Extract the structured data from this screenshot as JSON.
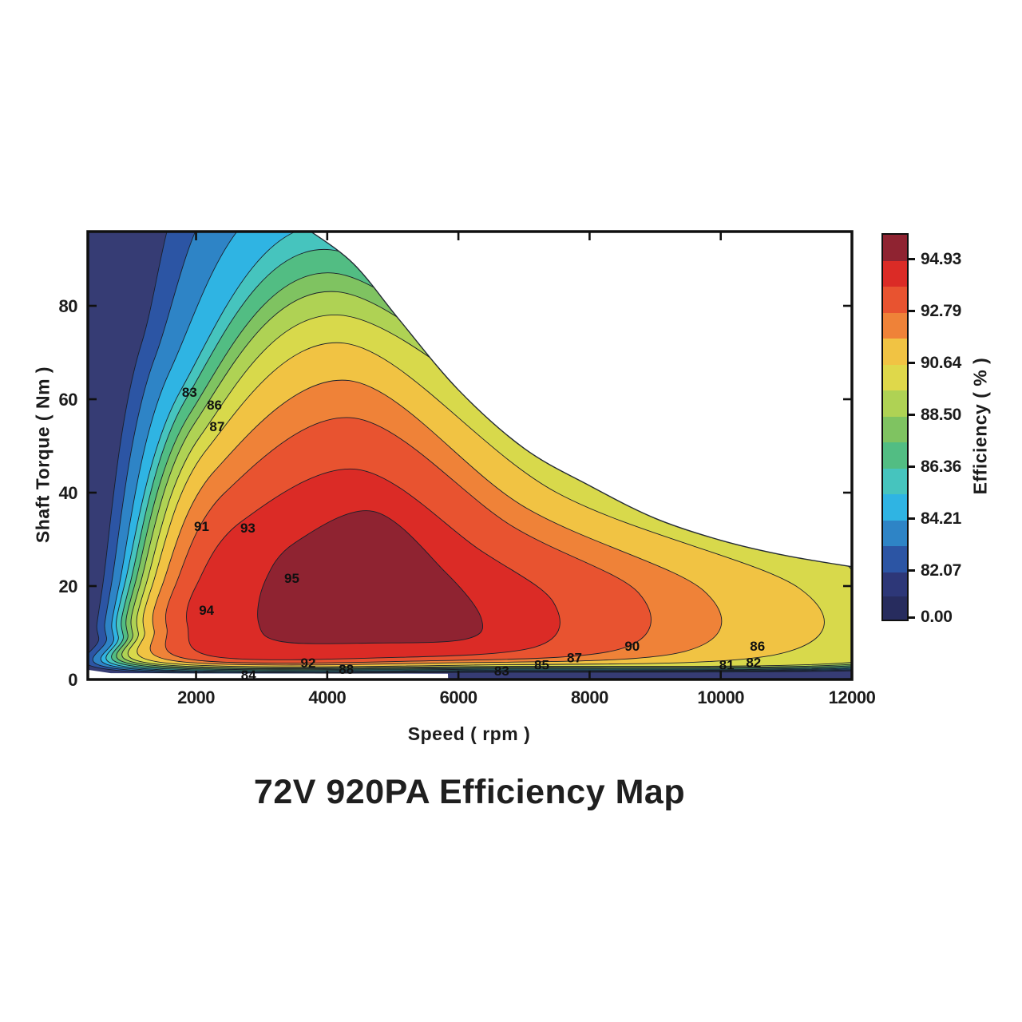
{
  "figure": {
    "title": "72V 920PA Efficiency Map",
    "background": "#ffffff"
  },
  "chart_data": {
    "type": "heatmap",
    "variant": "filled_contour_efficiency_map",
    "title": "72V 920PA Efficiency Map",
    "xlabel": "Speed ( rpm )",
    "ylabel": "Shaft Torque ( Nm )",
    "colorbar_label": "Efficiency ( % )",
    "xlim": [
      350,
      12000
    ],
    "ylim": [
      0,
      96
    ],
    "x_ticks": [
      2000,
      4000,
      6000,
      8000,
      10000,
      12000
    ],
    "y_ticks": [
      0,
      20,
      40,
      60,
      80
    ],
    "grid": false,
    "legend_position": "colorbar-right",
    "colorbar_tick_labels": [
      "94.93",
      "92.79",
      "90.64",
      "88.50",
      "86.36",
      "84.21",
      "82.07",
      "0.00"
    ],
    "colorbar_bands_top_to_bottom": [
      "#8F2331",
      "#DB2B26",
      "#E85330",
      "#EF8238",
      "#F1C343",
      "#DFD84A",
      "#AFD254",
      "#7FC361",
      "#52BD83",
      "#46C4BE",
      "#2FB4E3",
      "#2E84C6",
      "#2C55A4",
      "#2D3778",
      "#272C5E"
    ],
    "background_fill": "#363C74",
    "contour_line_color": "#1A1F2A",
    "peak": {
      "rpm": 4700,
      "torque_nm": 20,
      "efficiency_pct": 95
    },
    "envelope_flat_top": [
      [
        335,
        96.4
      ],
      [
        3700,
        96.4
      ]
    ],
    "envelope_curve": [
      [
        3700,
        96.4
      ],
      [
        4400,
        89
      ],
      [
        5100,
        77
      ],
      [
        6000,
        62
      ],
      [
        7000,
        49.5
      ],
      [
        8000,
        41.5
      ],
      [
        9000,
        34.5
      ],
      [
        10000,
        29.8
      ],
      [
        11000,
        26.5
      ],
      [
        12150,
        23.8
      ]
    ],
    "bottom_edge": [
      [
        12150,
        -3
      ],
      [
        5850,
        -3
      ],
      [
        5840,
        1.25
      ],
      [
        700,
        1.35
      ],
      [
        340,
        2.1
      ]
    ],
    "contours": [
      {
        "level": 82.07,
        "fill": "#2C55A4",
        "points": [
          [
            575,
            20
          ],
          [
            1170,
            72
          ],
          [
            2700,
            115
          ],
          [
            8000,
            58
          ],
          [
            11900,
            33
          ],
          [
            12780,
            4.5
          ],
          [
            12400,
            2.0
          ],
          [
            6640,
            1.55
          ],
          [
            835,
            1.9
          ],
          [
            515,
            9
          ]
        ]
      },
      {
        "level": 83.14,
        "fill": "#2E84C6",
        "points": [
          [
            705,
            20
          ],
          [
            1375,
            69
          ],
          [
            3100,
            109
          ],
          [
            8000,
            56
          ],
          [
            11850,
            32.5
          ],
          [
            12740,
            5.2
          ],
          [
            12360,
            2.2
          ],
          [
            6680,
            1.7
          ],
          [
            965,
            2.05
          ],
          [
            635,
            9
          ]
        ]
      },
      {
        "level": 84.21,
        "fill": "#2FB4E3",
        "points": [
          [
            825,
            20
          ],
          [
            1600,
            66
          ],
          [
            3600,
            103
          ],
          [
            8000,
            54
          ],
          [
            11800,
            32
          ],
          [
            12700,
            6.0
          ],
          [
            12320,
            2.4
          ],
          [
            6710,
            1.85
          ],
          [
            1085,
            2.2
          ],
          [
            745,
            9
          ]
        ]
      },
      {
        "level": 85.29,
        "fill": "#46C4BE",
        "points": [
          [
            905,
            20
          ],
          [
            1770,
            62
          ],
          [
            4000,
            97
          ],
          [
            8000,
            52
          ],
          [
            11750,
            31.5
          ],
          [
            12650,
            6.8
          ],
          [
            12280,
            2.6
          ],
          [
            6730,
            2.0
          ],
          [
            1165,
            2.35
          ],
          [
            815,
            9.2
          ]
        ]
      },
      {
        "level": 86.36,
        "fill": "#52BD83",
        "points": [
          [
            985,
            20
          ],
          [
            1845,
            60
          ],
          [
            4050,
            92
          ],
          [
            8000,
            51
          ],
          [
            11700,
            31
          ],
          [
            12600,
            7.6
          ],
          [
            12240,
            2.8
          ],
          [
            6740,
            2.2
          ],
          [
            1245,
            2.55
          ],
          [
            890,
            9.4
          ]
        ]
      },
      {
        "level": 87.43,
        "fill": "#7FC361",
        "points": [
          [
            1060,
            20
          ],
          [
            1910,
            57
          ],
          [
            4100,
            87
          ],
          [
            8000,
            49
          ],
          [
            11650,
            30.5
          ],
          [
            12550,
            8.5
          ],
          [
            12200,
            3.1
          ],
          [
            6760,
            2.4
          ],
          [
            1320,
            2.75
          ],
          [
            960,
            9.6
          ]
        ]
      },
      {
        "level": 88.5,
        "fill": "#AFD254",
        "points": [
          [
            1140,
            20
          ],
          [
            1985,
            55
          ],
          [
            4150,
            83
          ],
          [
            8000,
            47.5
          ],
          [
            11600,
            30
          ],
          [
            12500,
            9.5
          ],
          [
            12160,
            3.4
          ],
          [
            6770,
            2.6
          ],
          [
            1400,
            2.95
          ],
          [
            1035,
            9.8
          ]
        ]
      },
      {
        "level": 89.57,
        "fill": "#D8D94B",
        "points": [
          [
            1230,
            20
          ],
          [
            2060,
            52
          ],
          [
            4200,
            78
          ],
          [
            8000,
            45.5
          ],
          [
            11500,
            29
          ],
          [
            12420,
            11
          ],
          [
            12100,
            3.8
          ],
          [
            6790,
            2.8
          ],
          [
            1490,
            3.15
          ],
          [
            1120,
            10
          ]
        ]
      },
      {
        "level": 90.64,
        "fill": "#F1C343",
        "points": [
          [
            1330,
            20
          ],
          [
            2150,
            49
          ],
          [
            4260,
            72
          ],
          [
            7500,
            40
          ],
          [
            11200,
            19.5
          ],
          [
            10900,
            5.5
          ],
          [
            6260,
            3.1
          ],
          [
            1590,
            3.45
          ],
          [
            1215,
            10.3
          ]
        ]
      },
      {
        "level": 91.72,
        "fill": "#EF8238",
        "points": [
          [
            1480,
            20
          ],
          [
            2280,
            44.6
          ],
          [
            4330,
            64
          ],
          [
            7000,
            37
          ],
          [
            9740,
            19
          ],
          [
            9450,
            6.0
          ],
          [
            5610,
            3.5
          ],
          [
            1740,
            3.85
          ],
          [
            1360,
            10.6
          ]
        ]
      },
      {
        "level": 92.79,
        "fill": "#E85330",
        "points": [
          [
            1680,
            20
          ],
          [
            2440,
            40
          ],
          [
            4400,
            56
          ],
          [
            6800,
            33
          ],
          [
            8750,
            18.5
          ],
          [
            8460,
            6.5
          ],
          [
            5215,
            3.9
          ],
          [
            1940,
            4.25
          ],
          [
            1555,
            11
          ]
        ]
      },
      {
        "level": 93.86,
        "fill": "#DB2B26",
        "points": [
          [
            2000,
            20
          ],
          [
            2690,
            33.8
          ],
          [
            4450,
            45
          ],
          [
            6300,
            28
          ],
          [
            7450,
            16.5
          ],
          [
            7180,
            7.0
          ],
          [
            4725,
            4.6
          ],
          [
            2260,
            4.95
          ],
          [
            1870,
            11.5
          ]
        ]
      },
      {
        "level": 94.93,
        "fill": "#8F2331",
        "points": [
          [
            3050,
            21
          ],
          [
            3510,
            29.3
          ],
          [
            4700,
            36
          ],
          [
            5800,
            23
          ],
          [
            6350,
            13
          ],
          [
            6100,
            8.6
          ],
          [
            4700,
            7.8
          ],
          [
            3310,
            8.1
          ],
          [
            2955,
            12
          ]
        ]
      }
    ],
    "contour_labels": [
      {
        "text": "83",
        "rpm": 1900,
        "nm": 61.5
      },
      {
        "text": "86",
        "rpm": 2280,
        "nm": 58.8
      },
      {
        "text": "87",
        "rpm": 2320,
        "nm": 54.2
      },
      {
        "text": "91",
        "rpm": 2085,
        "nm": 32.8
      },
      {
        "text": "93",
        "rpm": 2790,
        "nm": 32.5
      },
      {
        "text": "95",
        "rpm": 3460,
        "nm": 21.7
      },
      {
        "text": "94",
        "rpm": 2160,
        "nm": 14.9
      },
      {
        "text": "84",
        "rpm": 2800,
        "nm": 1.0
      },
      {
        "text": "92",
        "rpm": 3710,
        "nm": 3.6
      },
      {
        "text": "88",
        "rpm": 4290,
        "nm": 2.2
      },
      {
        "text": "83",
        "rpm": 6660,
        "nm": 1.9
      },
      {
        "text": "85",
        "rpm": 7270,
        "nm": 3.2
      },
      {
        "text": "87",
        "rpm": 7770,
        "nm": 4.7
      },
      {
        "text": "90",
        "rpm": 8650,
        "nm": 7.2
      },
      {
        "text": "86",
        "rpm": 10560,
        "nm": 7.2
      },
      {
        "text": "81",
        "rpm": 10090,
        "nm": 3.2
      },
      {
        "text": "82",
        "rpm": 10500,
        "nm": 3.7
      }
    ]
  }
}
